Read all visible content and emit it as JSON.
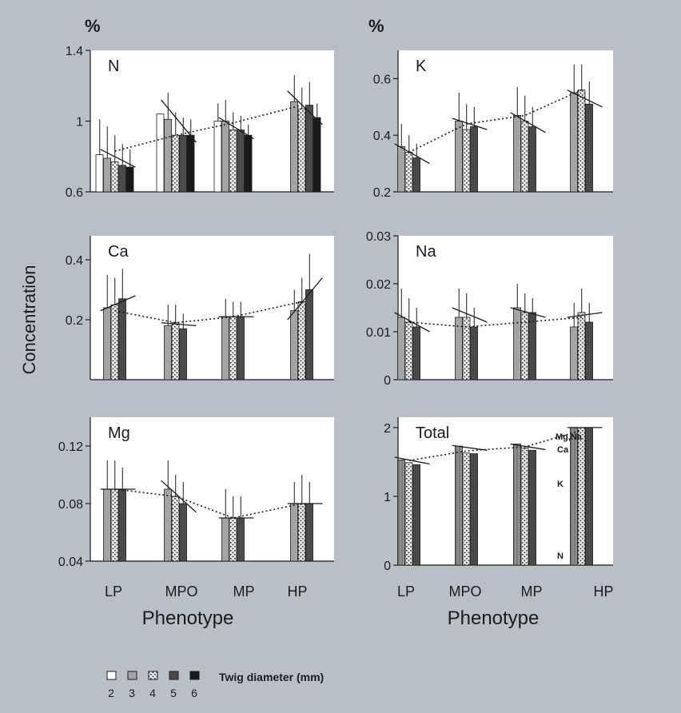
{
  "figure": {
    "y_title": "Concentration",
    "x_title": "Phenotype",
    "unit_label": "%",
    "legend_title": "Twig diameter (mm)",
    "legend_items": [
      "2",
      "3",
      "4",
      "5",
      "6"
    ],
    "phenotypes": [
      "LP",
      "MPO",
      "MP",
      "HP"
    ]
  },
  "chart_data": [
    {
      "type": "bar",
      "title": "N",
      "categories": [
        "LP",
        "MPO",
        "MP",
        "HP"
      ],
      "ylim": [
        0.6,
        1.4
      ],
      "yticks": [
        "0.6",
        "1",
        "1.4"
      ],
      "series": [
        {
          "name": "2",
          "values": [
            0.81,
            1.04,
            1.0,
            null
          ],
          "err": [
            0.2,
            0.0,
            0.1,
            0.0
          ]
        },
        {
          "name": "3",
          "values": [
            0.79,
            1.01,
            1.0,
            1.11
          ],
          "err": [
            0.18,
            0.15,
            0.12,
            0.15
          ]
        },
        {
          "name": "4",
          "values": [
            0.77,
            0.92,
            0.95,
            1.07
          ],
          "err": [
            0.15,
            0.13,
            0.1,
            0.12
          ]
        },
        {
          "name": "5",
          "values": [
            0.75,
            0.92,
            0.95,
            1.09
          ],
          "err": [
            0.12,
            0.1,
            0.08,
            0.13
          ]
        },
        {
          "name": "6",
          "values": [
            0.74,
            0.92,
            0.92,
            1.02
          ],
          "err": [
            0.1,
            0.09,
            0.06,
            0.08
          ]
        }
      ],
      "lines": [
        [
          0.84,
          0.74
        ],
        [
          1.12,
          0.88
        ],
        [
          1.02,
          0.9
        ],
        [
          1.17,
          0.98
        ]
      ],
      "trend": [
        0.83,
        0.92,
        0.99,
        1.09
      ]
    },
    {
      "type": "bar",
      "title": "K",
      "categories": [
        "LP",
        "MPO",
        "MP",
        "HP"
      ],
      "ylim": [
        0.2,
        0.7
      ],
      "yticks": [
        "0.2",
        "0.4",
        "0.6"
      ],
      "series": [
        {
          "name": "2",
          "values": [
            null,
            null,
            null,
            null
          ],
          "err": [
            0,
            0,
            0,
            0
          ]
        },
        {
          "name": "3",
          "values": [
            0.36,
            0.45,
            0.47,
            0.55
          ],
          "err": [
            0.08,
            0.1,
            0.1,
            0.1
          ]
        },
        {
          "name": "4",
          "values": [
            0.34,
            0.42,
            0.45,
            0.56
          ],
          "err": [
            0.06,
            0.09,
            0.09,
            0.09
          ]
        },
        {
          "name": "5",
          "values": [
            0.32,
            0.43,
            0.43,
            0.51
          ],
          "err": [
            0.05,
            0.07,
            0.07,
            0.08
          ]
        },
        {
          "name": "6",
          "values": [
            null,
            null,
            null,
            null
          ],
          "err": [
            0,
            0,
            0,
            0
          ]
        }
      ],
      "lines": [
        [
          0.37,
          0.3
        ],
        [
          0.46,
          0.42
        ],
        [
          0.48,
          0.41
        ],
        [
          0.56,
          0.5
        ]
      ],
      "trend": [
        0.34,
        0.44,
        0.47,
        0.56
      ]
    },
    {
      "type": "bar",
      "title": "Ca",
      "categories": [
        "LP",
        "MPO",
        "MP",
        "HP"
      ],
      "ylim": [
        0,
        0.48
      ],
      "yticks": [
        "0.2",
        "0.4"
      ],
      "series": [
        {
          "name": "2",
          "values": [
            null,
            null,
            null,
            null
          ],
          "err": [
            0,
            0,
            0,
            0
          ]
        },
        {
          "name": "3",
          "values": [
            0.24,
            0.18,
            0.21,
            0.23
          ],
          "err": [
            0.11,
            0.07,
            0.06,
            0.07
          ]
        },
        {
          "name": "4",
          "values": [
            0.25,
            0.19,
            0.21,
            0.26
          ],
          "err": [
            0.09,
            0.06,
            0.05,
            0.08
          ]
        },
        {
          "name": "5",
          "values": [
            0.27,
            0.17,
            0.21,
            0.3
          ],
          "err": [
            0.1,
            0.05,
            0.05,
            0.12
          ]
        },
        {
          "name": "6",
          "values": [
            null,
            null,
            null,
            null
          ],
          "err": [
            0,
            0,
            0,
            0
          ]
        }
      ],
      "lines": [
        [
          0.23,
          0.28
        ],
        [
          0.19,
          0.18
        ],
        [
          0.21,
          0.21
        ],
        [
          0.2,
          0.34
        ]
      ],
      "trend": [
        0.23,
        0.19,
        0.21,
        0.26
      ]
    },
    {
      "type": "bar",
      "title": "Na",
      "categories": [
        "LP",
        "MPO",
        "MP",
        "HP"
      ],
      "ylim": [
        0,
        0.03
      ],
      "yticks": [
        "0",
        "0.01",
        "0.02",
        "0.03"
      ],
      "series": [
        {
          "name": "2",
          "values": [
            null,
            null,
            null,
            null
          ],
          "err": [
            0,
            0,
            0,
            0
          ]
        },
        {
          "name": "3",
          "values": [
            0.013,
            0.013,
            0.015,
            0.011
          ],
          "err": [
            0.006,
            0.006,
            0.005,
            0.005
          ]
        },
        {
          "name": "4",
          "values": [
            0.012,
            0.013,
            0.014,
            0.014
          ],
          "err": [
            0.005,
            0.005,
            0.004,
            0.005
          ]
        },
        {
          "name": "5",
          "values": [
            0.011,
            0.011,
            0.014,
            0.012
          ],
          "err": [
            0.004,
            0.004,
            0.003,
            0.004
          ]
        },
        {
          "name": "6",
          "values": [
            null,
            null,
            null,
            null
          ],
          "err": [
            0,
            0,
            0,
            0
          ]
        }
      ],
      "lines": [
        [
          0.014,
          0.01
        ],
        [
          0.015,
          0.012
        ],
        [
          0.015,
          0.013
        ],
        [
          0.013,
          0.014
        ]
      ],
      "trend": [
        0.012,
        0.011,
        0.012,
        0.013
      ]
    },
    {
      "type": "bar",
      "title": "Mg",
      "categories": [
        "LP",
        "MPO",
        "MP",
        "HP"
      ],
      "ylim": [
        0.04,
        0.14
      ],
      "yticks": [
        "0.04",
        "0.08",
        "0.12"
      ],
      "series": [
        {
          "name": "2",
          "values": [
            null,
            null,
            null,
            null
          ],
          "err": [
            0,
            0,
            0,
            0
          ]
        },
        {
          "name": "3",
          "values": [
            0.09,
            0.09,
            0.07,
            0.08
          ],
          "err": [
            0.02,
            0.02,
            0.02,
            0.015
          ]
        },
        {
          "name": "4",
          "values": [
            0.09,
            0.085,
            0.07,
            0.08
          ],
          "err": [
            0.02,
            0.015,
            0.015,
            0.02
          ]
        },
        {
          "name": "5",
          "values": [
            0.09,
            0.08,
            0.07,
            0.08
          ],
          "err": [
            0.015,
            0.015,
            0.015,
            0.015
          ]
        },
        {
          "name": "6",
          "values": [
            null,
            null,
            null,
            null
          ],
          "err": [
            0,
            0,
            0,
            0
          ]
        }
      ],
      "lines": [
        [
          0.09,
          0.09
        ],
        [
          0.096,
          0.074
        ],
        [
          0.07,
          0.07
        ],
        [
          0.08,
          0.08
        ]
      ],
      "trend": [
        0.09,
        0.085,
        0.07,
        0.08
      ]
    },
    {
      "type": "bar",
      "title": "Total",
      "categories": [
        "LP",
        "MPO",
        "MP",
        "HP"
      ],
      "ylim": [
        0,
        2.15
      ],
      "yticks": [
        "0",
        "1",
        "2"
      ],
      "series": [
        {
          "name": "2",
          "values": [
            null,
            null,
            null,
            null
          ],
          "err": [
            0,
            0,
            0,
            0
          ]
        },
        {
          "name": "3",
          "values": [
            1.53,
            1.73,
            1.76,
            2.0
          ],
          "err": [
            0,
            0,
            0,
            0
          ]
        },
        {
          "name": "4",
          "values": [
            1.49,
            1.63,
            1.7,
            2.0
          ],
          "err": [
            0,
            0,
            0,
            0
          ]
        },
        {
          "name": "5",
          "values": [
            1.46,
            1.62,
            1.67,
            2.0
          ],
          "err": [
            0,
            0,
            0,
            0
          ]
        },
        {
          "name": "6",
          "values": [
            null,
            null,
            null,
            null
          ],
          "err": [
            0,
            0,
            0,
            0
          ]
        }
      ],
      "lines": [
        [
          1.57,
          1.47
        ],
        [
          1.74,
          1.67
        ],
        [
          1.76,
          1.68
        ],
        [
          2.0,
          2.0
        ]
      ],
      "trend": [
        1.52,
        1.66,
        1.72,
        1.96
      ],
      "components": [
        "Mg,Na",
        "Ca",
        "K",
        "N"
      ]
    }
  ],
  "colors": {
    "background": "#b9bfc7",
    "panel": "#ffffff",
    "ink": "#1c1c1c",
    "bar3": "#a4a4a4",
    "bar5": "#4a4a4a",
    "bar6": "#1a1a1a"
  }
}
